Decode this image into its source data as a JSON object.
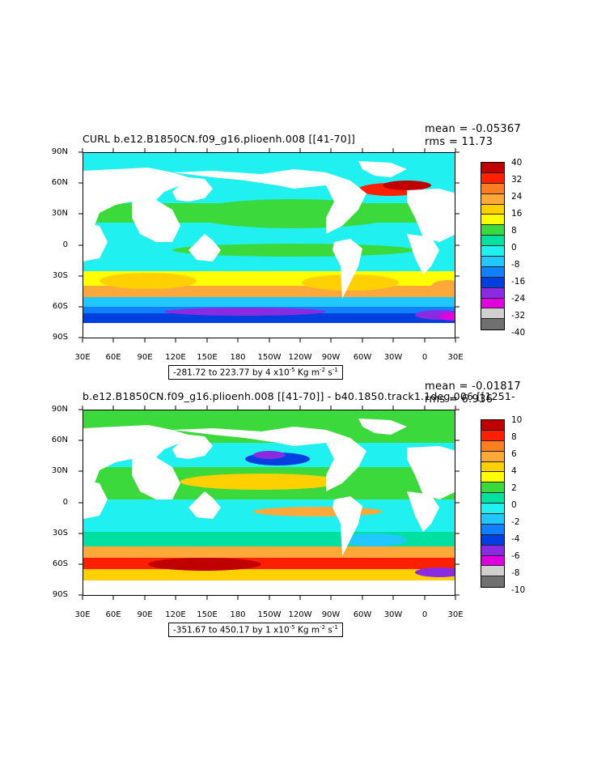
{
  "panels": [
    {
      "title": "CURL b.e12.B1850CN.f09_g16.plioenh.008 [[41-70]]",
      "mean": "mean = -0.05367",
      "rms": "rms = 11.73",
      "range_text": "-281.72 to 223.77 by 4 x10",
      "range_exp": "-5",
      "range_units_a": " Kg m",
      "range_units_exp1": "-2",
      "range_units_b": " s",
      "range_units_exp2": "-1",
      "colorbar_labels": [
        "40",
        "32",
        "24",
        "16",
        "8",
        "0",
        "-8",
        "-16",
        "-24",
        "-32",
        "-40"
      ]
    },
    {
      "title": "b.e12.B1850CN.f09_g16.plioenh.008 [[41-70]] - b40.1850.track1.1deg.006 [[1251-",
      "mean": "mean = -0.01817",
      "rms": "rms = 6.936",
      "range_text": "-351.67 to 450.17 by 1 x10",
      "range_exp": "-5",
      "range_units_a": " Kg m",
      "range_units_exp1": "-2",
      "range_units_b": " s",
      "range_units_exp2": "-1",
      "colorbar_labels": [
        "10",
        "8",
        "6",
        "4",
        "2",
        "0",
        "-2",
        "-4",
        "-6",
        "-8",
        "-10"
      ]
    }
  ],
  "axes": {
    "y_ticks": [
      "90N",
      "60N",
      "30N",
      "0",
      "30S",
      "60S",
      "90S"
    ],
    "x_ticks": [
      "30E",
      "60E",
      "90E",
      "120E",
      "150E",
      "180",
      "150W",
      "120W",
      "90W",
      "60W",
      "30W",
      "0",
      "30E"
    ]
  },
  "colorbar_colors": [
    "#c00000",
    "#ff2000",
    "#ff7f20",
    "#ffa83a",
    "#ffd000",
    "#ffff00",
    "#3cd93c",
    "#00e0a0",
    "#20f0f0",
    "#20c8ff",
    "#1080ff",
    "#0040e0",
    "#8a2be2",
    "#e000e0",
    "#d0d0d0",
    "#707070"
  ],
  "chart_data": [
    {
      "type": "heatmap",
      "title": "CURL b.e12.B1850CN.f09_g16.plioenh.008 [[41-70]]",
      "x_range": [
        "30E",
        "30E"
      ],
      "y_range": [
        "90S",
        "90N"
      ],
      "color_levels": [
        -40,
        -32,
        -24,
        -16,
        -8,
        0,
        8,
        16,
        24,
        32,
        40
      ],
      "mean": -0.05367,
      "rms": 11.73,
      "min": -281.72,
      "max": 223.77,
      "contour_interval": 4,
      "units": "x10-5 Kg m-2 s-1"
    },
    {
      "type": "heatmap",
      "title": "b.e12.B1850CN.f09_g16.plioenh.008 [[41-70]] - b40.1850.track1.1deg.006 [[1251-",
      "x_range": [
        "30E",
        "30E"
      ],
      "y_range": [
        "90S",
        "90N"
      ],
      "color_levels": [
        -10,
        -8,
        -6,
        -4,
        -2,
        0,
        2,
        4,
        6,
        8,
        10
      ],
      "mean": -0.01817,
      "rms": 6.936,
      "min": -351.67,
      "max": 450.17,
      "contour_interval": 1,
      "units": "x10-5 Kg m-2 s-1"
    }
  ]
}
